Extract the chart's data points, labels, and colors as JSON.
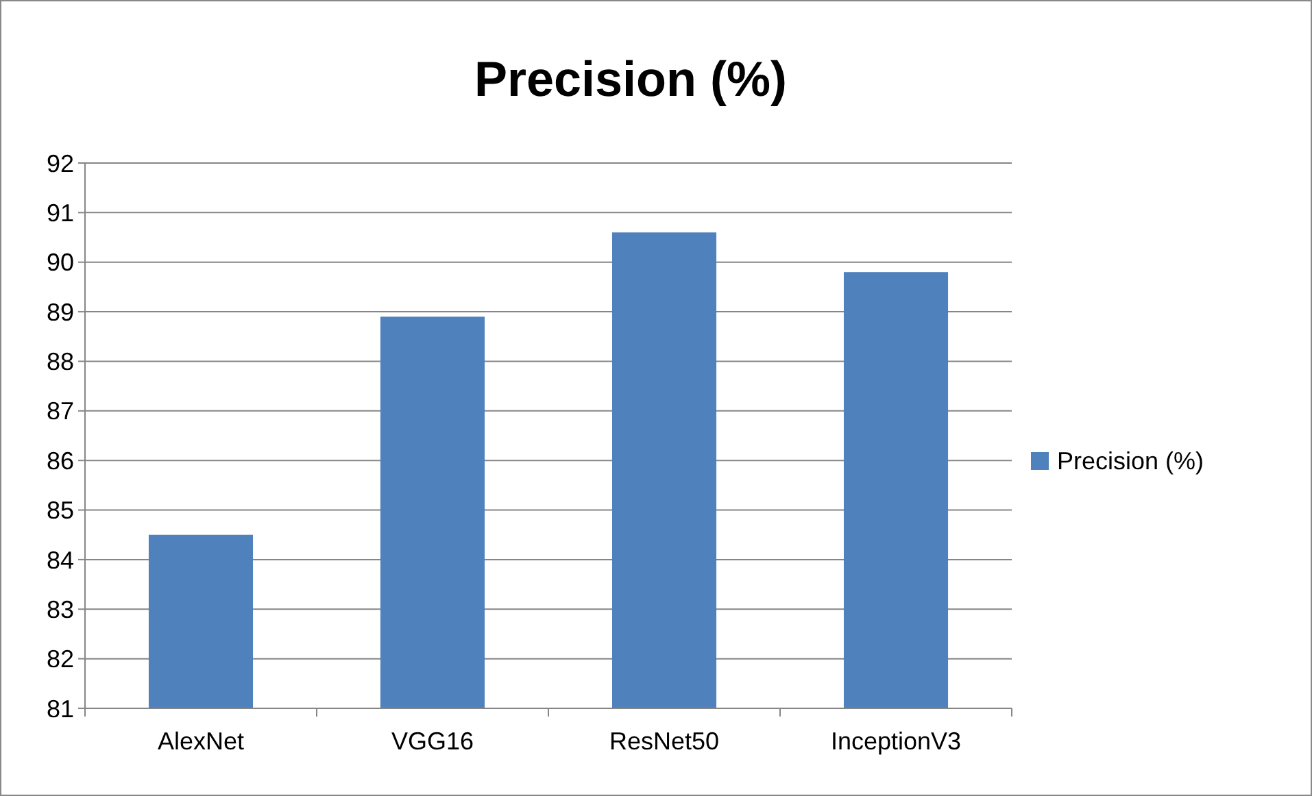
{
  "chart_data": {
    "type": "bar",
    "title": "Precision (%)",
    "categories": [
      "AlexNet",
      "VGG16",
      "ResNet50",
      "InceptionV3"
    ],
    "series": [
      {
        "name": "Precision (%)",
        "color": "#4f81bd",
        "values": [
          84.5,
          88.9,
          90.6,
          89.8
        ]
      }
    ],
    "ylim": [
      81,
      92
    ],
    "yticks": [
      81,
      82,
      83,
      84,
      85,
      86,
      87,
      88,
      89,
      90,
      91,
      92
    ],
    "grid": "y",
    "legend": "right"
  }
}
